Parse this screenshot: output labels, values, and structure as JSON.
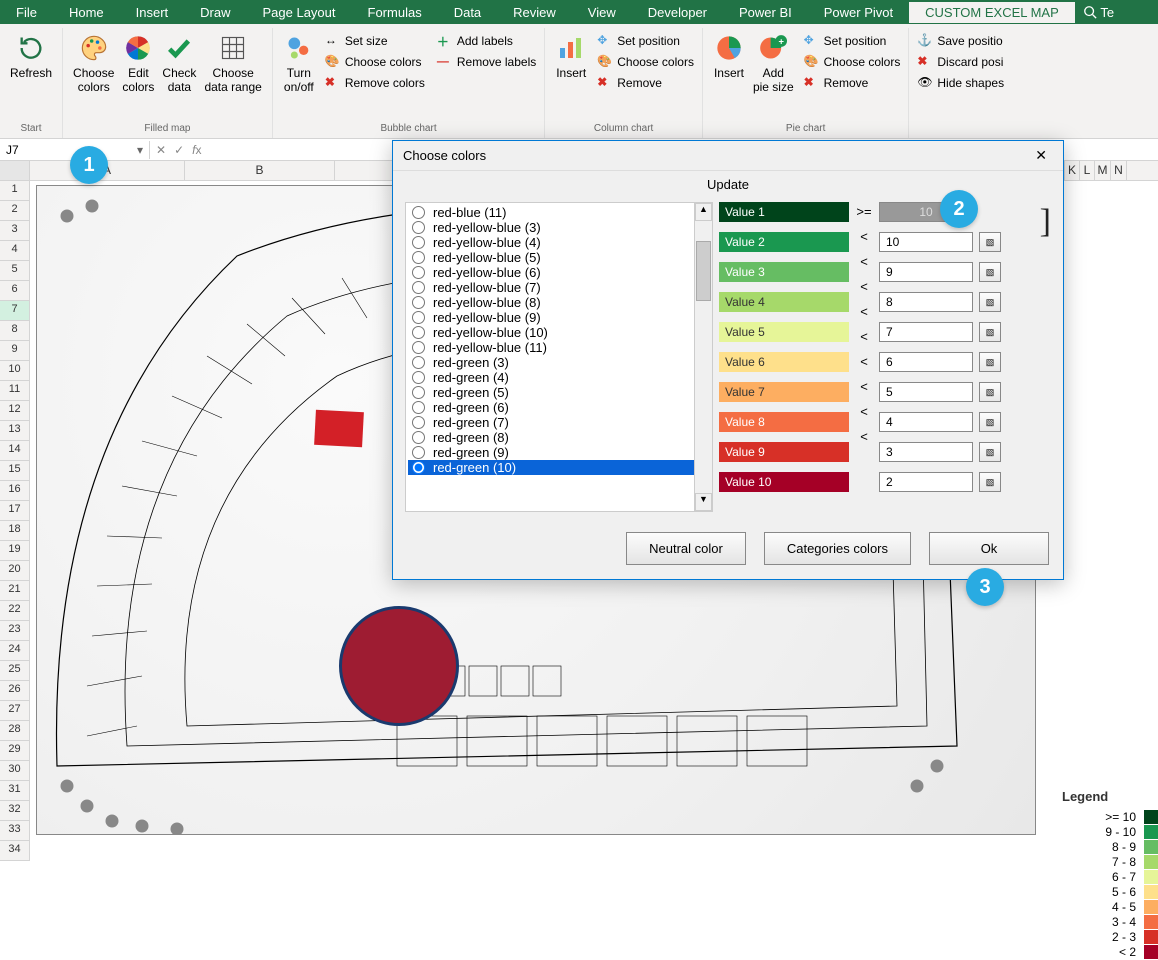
{
  "tabs": [
    "File",
    "Home",
    "Insert",
    "Draw",
    "Page Layout",
    "Formulas",
    "Data",
    "Review",
    "View",
    "Developer",
    "Power BI",
    "Power Pivot",
    "CUSTOM EXCEL MAP"
  ],
  "tell_me": "Te",
  "ribbon": {
    "g1": {
      "refresh": "Refresh",
      "label": "Start"
    },
    "g2": {
      "choose": "Choose\ncolors",
      "edit": "Edit\ncolors",
      "check": "Check\ndata",
      "range": "Choose\ndata range",
      "label": "Filled map"
    },
    "g3": {
      "turn": "Turn\non/off"
    },
    "bubble": {
      "set_size": "Set size",
      "choose": "Choose colors",
      "remove": "Remove colors",
      "add_labels": "Add labels",
      "remove_labels": "Remove labels",
      "label": "Bubble chart"
    },
    "column": {
      "insert": "Insert",
      "set_pos": "Set position",
      "choose": "Choose colors",
      "remove": "Remove",
      "label": "Column chart"
    },
    "pie": {
      "insert": "Insert",
      "add_size": "Add\npie size",
      "set_pos": "Set position",
      "choose": "Choose colors",
      "remove": "Remove",
      "label": "Pie chart"
    },
    "shapes": {
      "save": "Save positio",
      "discard": "Discard posi",
      "hide": "Hide shapes"
    }
  },
  "name_box": "J7",
  "columns": {
    "A": 155,
    "B": 150,
    "K": 15,
    "L": 15,
    "M": 16,
    "N": 16
  },
  "rows": 34,
  "selected_row": 7,
  "dialog": {
    "title": "Choose colors",
    "update": "Update",
    "schemes": [
      "red-blue (11)",
      "red-yellow-blue (3)",
      "red-yellow-blue (4)",
      "red-yellow-blue (5)",
      "red-yellow-blue (6)",
      "red-yellow-blue (7)",
      "red-yellow-blue (8)",
      "red-yellow-blue (9)",
      "red-yellow-blue (10)",
      "red-yellow-blue (11)",
      "red-green (3)",
      "red-green (4)",
      "red-green (5)",
      "red-green (6)",
      "red-green (7)",
      "red-green (8)",
      "red-green (9)",
      "red-green (10)"
    ],
    "selected_scheme": 17,
    "values": [
      {
        "label": "Value 1",
        "color": "#00441b",
        "text": "light"
      },
      {
        "label": "Value 2",
        "color": "#1a9850",
        "text": "light"
      },
      {
        "label": "Value 3",
        "color": "#66bd63",
        "text": "light"
      },
      {
        "label": "Value 4",
        "color": "#a6d96a",
        "text": "dark"
      },
      {
        "label": "Value 5",
        "color": "#e6f598",
        "text": "dark"
      },
      {
        "label": "Value 6",
        "color": "#fee08b",
        "text": "dark"
      },
      {
        "label": "Value 7",
        "color": "#fdae61",
        "text": "dark"
      },
      {
        "label": "Value 8",
        "color": "#f46d43",
        "text": "light"
      },
      {
        "label": "Value 9",
        "color": "#d73027",
        "text": "light"
      },
      {
        "label": "Value 10",
        "color": "#a50026",
        "text": "light"
      }
    ],
    "ops": [
      ">=",
      "<",
      "<",
      "<",
      "<",
      "<",
      "<",
      "<",
      "<",
      "<"
    ],
    "inputs": [
      "10",
      "10",
      "9",
      "8",
      "7",
      "6",
      "5",
      "4",
      "3",
      "2"
    ],
    "neutral": "Neutral color",
    "categories": "Categories colors",
    "ok": "Ok"
  },
  "legend": {
    "title": "Legend",
    "rows": [
      {
        "label": ">=    10",
        "color": "#00441b"
      },
      {
        "label": "9 - 10",
        "color": "#1a9850"
      },
      {
        "label": "8 -  9",
        "color": "#66bd63"
      },
      {
        "label": "7 -  8",
        "color": "#a6d96a"
      },
      {
        "label": "6 -  7",
        "color": "#e6f598"
      },
      {
        "label": "5 -  6",
        "color": "#fee08b"
      },
      {
        "label": "4 -  5",
        "color": "#fdae61"
      },
      {
        "label": "3 -  4",
        "color": "#f46d43"
      },
      {
        "label": "2 -  3",
        "color": "#d73027"
      },
      {
        "label": "<     2",
        "color": "#a50026"
      }
    ]
  },
  "circles": [
    "#f46d43",
    "#fdae61",
    "#fee08b",
    "#e6f598",
    "#a6d96a",
    "#66bd63",
    "#1a9850",
    "#00441b"
  ],
  "badges": {
    "1": "1",
    "2": "2",
    "3": "3"
  }
}
